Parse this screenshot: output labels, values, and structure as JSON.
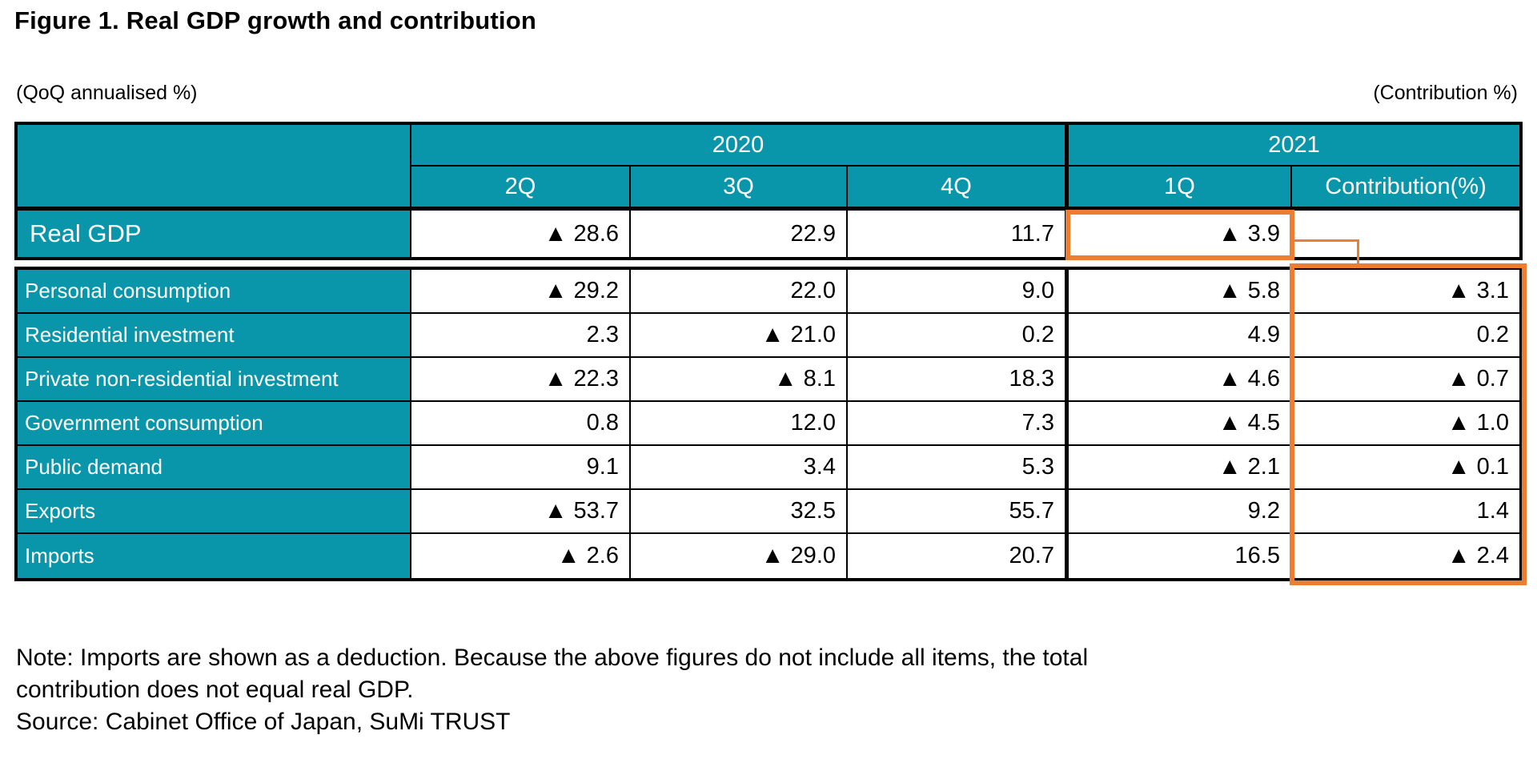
{
  "figure": {
    "title": "Figure 1. Real GDP growth and contribution",
    "unit_left": "(QoQ annualised %)",
    "unit_right": "(Contribution %)"
  },
  "table": {
    "year_groups": [
      {
        "label": "2020",
        "span": 3
      },
      {
        "label": "2021",
        "span": 2
      }
    ],
    "columns": [
      "2Q",
      "3Q",
      "4Q",
      "1Q",
      "Contribution(%)"
    ],
    "gdp_row": {
      "label": "Real GDP",
      "values": [
        "▲ 28.6",
        "22.9",
        "11.7",
        "▲ 3.9",
        ""
      ]
    },
    "rows": [
      {
        "label": "Personal consumption",
        "values": [
          "▲ 29.2",
          "22.0",
          "9.0",
          "▲ 5.8",
          "▲ 3.1"
        ]
      },
      {
        "label": "Residential investment",
        "values": [
          "2.3",
          "▲ 21.0",
          "0.2",
          "4.9",
          "0.2"
        ]
      },
      {
        "label": "Private non-residential investment",
        "values": [
          "▲ 22.3",
          "▲ 8.1",
          "18.3",
          "▲ 4.6",
          "▲ 0.7"
        ]
      },
      {
        "label": "Government consumption",
        "values": [
          "0.8",
          "12.0",
          "7.3",
          "▲ 4.5",
          "▲ 1.0"
        ]
      },
      {
        "label": "Public demand",
        "values": [
          "9.1",
          "3.4",
          "5.3",
          "▲ 2.1",
          "▲ 0.1"
        ]
      },
      {
        "label": "Exports",
        "values": [
          "▲ 53.7",
          "32.5",
          "55.7",
          "9.2",
          "1.4"
        ]
      },
      {
        "label": "Imports",
        "values": [
          "▲ 2.6",
          "▲ 29.0",
          "20.7",
          "16.5",
          "▲ 2.4"
        ]
      }
    ]
  },
  "notes": {
    "note_line1": "Note: Imports are shown as a deduction. Because the above figures do not include all items, the total",
    "note_line2": "contribution does not equal real GDP.",
    "source": "Source: Cabinet Office of Japan, SuMi TRUST"
  },
  "colors": {
    "header_teal": "#0A96AA",
    "highlight_orange": "#ED7D31",
    "border_black": "#000000"
  },
  "icons": {
    "negative_marker": "▲"
  },
  "chart_data": {
    "type": "table",
    "title": "Figure 1. Real GDP growth and contribution",
    "units": {
      "growth_columns": "QoQ annualised %",
      "contribution_column": "Contribution %"
    },
    "negative_marker": "▲ denotes negative value",
    "columns": [
      "2020 2Q",
      "2020 3Q",
      "2020 4Q",
      "2021 1Q",
      "2021 1Q Contribution (%)"
    ],
    "rows": [
      {
        "label": "Real GDP",
        "values": [
          -28.6,
          22.9,
          11.7,
          -3.9,
          null
        ]
      },
      {
        "label": "Personal consumption",
        "values": [
          -29.2,
          22.0,
          9.0,
          -5.8,
          -3.1
        ]
      },
      {
        "label": "Residential investment",
        "values": [
          2.3,
          -21.0,
          0.2,
          4.9,
          0.2
        ]
      },
      {
        "label": "Private non-residential investment",
        "values": [
          -22.3,
          -8.1,
          18.3,
          -4.6,
          -0.7
        ]
      },
      {
        "label": "Government consumption",
        "values": [
          0.8,
          12.0,
          7.3,
          -4.5,
          -1.0
        ]
      },
      {
        "label": "Public demand",
        "values": [
          9.1,
          3.4,
          5.3,
          -2.1,
          -0.1
        ]
      },
      {
        "label": "Exports",
        "values": [
          -53.7,
          32.5,
          55.7,
          9.2,
          1.4
        ]
      },
      {
        "label": "Imports",
        "values": [
          -2.6,
          -29.0,
          20.7,
          16.5,
          -2.4
        ]
      }
    ],
    "highlights": [
      {
        "target": "Real GDP 2021 1Q cell",
        "style": "orange box"
      },
      {
        "target": "Contribution(%) column for component rows",
        "style": "orange box"
      },
      {
        "target": "connector line from Real GDP 1Q to contribution column",
        "style": "orange line"
      }
    ]
  }
}
